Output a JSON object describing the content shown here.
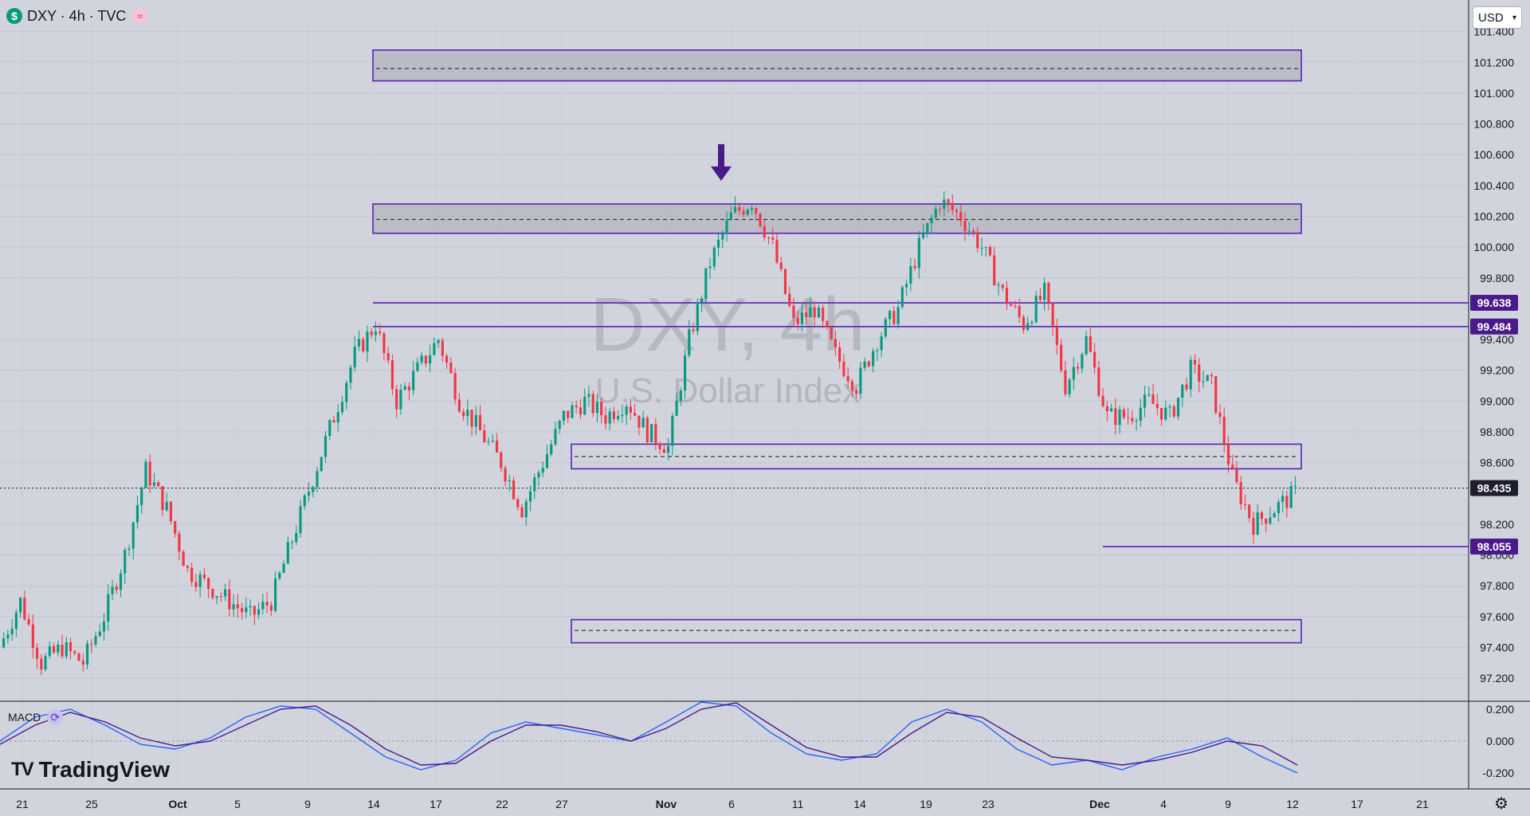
{
  "header": {
    "symbol_icon": "$",
    "title": "DXY · 4h · TVC",
    "badge_icon": "≈"
  },
  "currency_select": {
    "value": "USD",
    "icon": "chevron-down-icon"
  },
  "watermark": {
    "line1": "DXY, 4h",
    "line2": "U.S. Dollar Index"
  },
  "macd": {
    "label": "MACD"
  },
  "branding": {
    "mark": "TV",
    "name": "TradingView"
  },
  "colors": {
    "background": "#d1d4dc",
    "up": "#089981",
    "down": "#f23645",
    "zone": "#5b21b6",
    "macd": "#2962ff",
    "signal": "#4a1a8a"
  },
  "chart_data": [
    {
      "type": "candlestick",
      "title": "DXY · 4h · TVC",
      "y_axis": {
        "ticks": [
          "101.400",
          "101.200",
          "101.000",
          "100.800",
          "100.600",
          "100.400",
          "100.200",
          "100.000",
          "99.800",
          "99.400",
          "99.200",
          "99.000",
          "98.800",
          "98.600",
          "98.200",
          "98.000",
          "97.800",
          "97.600",
          "97.400",
          "97.200"
        ],
        "ylim": [
          97.05,
          101.45
        ]
      },
      "x_axis": {
        "ticks": [
          "21",
          "25",
          "Oct",
          "5",
          "9",
          "14",
          "17",
          "22",
          "27",
          "Nov",
          "6",
          "11",
          "14",
          "19",
          "23",
          "Dec",
          "4",
          "9",
          "12",
          "17",
          "21"
        ],
        "bold_ticks": [
          "Oct",
          "Nov",
          "Dec"
        ]
      },
      "price_labels": [
        {
          "value": "99.638",
          "price": 99.638
        },
        {
          "value": "99.484",
          "price": 99.484
        },
        {
          "value": "98.435",
          "price": 98.435
        },
        {
          "value": "98.055",
          "price": 98.055
        }
      ],
      "current_price": 98.435,
      "zones": [
        {
          "name": "zone-1",
          "top": 101.28,
          "bottom": 101.08,
          "mid": 101.16,
          "filled": true
        },
        {
          "name": "zone-2",
          "top": 100.28,
          "bottom": 100.09,
          "mid": 100.18,
          "filled": true
        },
        {
          "name": "zone-3",
          "top": 98.72,
          "bottom": 98.56,
          "mid": 98.64,
          "filled": false
        },
        {
          "name": "zone-4",
          "top": 97.58,
          "bottom": 97.43,
          "mid": 97.51,
          "filled": false
        }
      ],
      "levels": [
        99.638,
        99.484,
        98.055
      ],
      "annotation": {
        "type": "arrow-down",
        "at_price": 100.4
      },
      "close_path": [
        97.4,
        97.7,
        97.3,
        97.4,
        97.3,
        97.6,
        98.0,
        98.55,
        98.3,
        97.9,
        97.8,
        97.7,
        97.6,
        97.7,
        98.1,
        98.5,
        98.9,
        99.3,
        99.5,
        99.0,
        99.2,
        99.4,
        99.0,
        98.8,
        98.6,
        98.3,
        98.6,
        98.9,
        99.0,
        98.9,
        99.0,
        98.8,
        98.7,
        99.4,
        99.9,
        100.2,
        100.3,
        100.0,
        99.5,
        99.6,
        99.3,
        99.1,
        99.4,
        99.6,
        100.0,
        100.3,
        100.2,
        100.0,
        99.7,
        99.5,
        99.7,
        99.1,
        99.4,
        98.9,
        98.9,
        99.0,
        98.9,
        99.2,
        99.1,
        98.5,
        98.2,
        98.3,
        98.4
      ],
      "macd_series": [
        {
          "name": "MACD",
          "values": [
            0.0,
            0.15,
            0.2,
            0.1,
            -0.02,
            -0.05,
            0.02,
            0.15,
            0.22,
            0.2,
            0.05,
            -0.1,
            -0.18,
            -0.12,
            0.05,
            0.12,
            0.08,
            0.04,
            0.0,
            0.12,
            0.25,
            0.22,
            0.05,
            -0.08,
            -0.12,
            -0.08,
            0.12,
            0.2,
            0.12,
            -0.05,
            -0.15,
            -0.12,
            -0.18,
            -0.1,
            -0.05,
            0.02,
            -0.1,
            -0.2
          ]
        },
        {
          "name": "Signal",
          "values": [
            -0.02,
            0.1,
            0.18,
            0.12,
            0.02,
            -0.03,
            0.0,
            0.1,
            0.2,
            0.22,
            0.1,
            -0.05,
            -0.15,
            -0.14,
            0.0,
            0.1,
            0.1,
            0.06,
            0.0,
            0.08,
            0.2,
            0.24,
            0.1,
            -0.04,
            -0.1,
            -0.1,
            0.05,
            0.18,
            0.15,
            0.02,
            -0.1,
            -0.12,
            -0.15,
            -0.12,
            -0.07,
            0.0,
            -0.03,
            -0.15
          ]
        }
      ],
      "macd_axis": {
        "ticks": [
          "0.200",
          "0.000",
          "-0.200"
        ],
        "ylim": [
          -0.3,
          0.25
        ]
      }
    }
  ]
}
